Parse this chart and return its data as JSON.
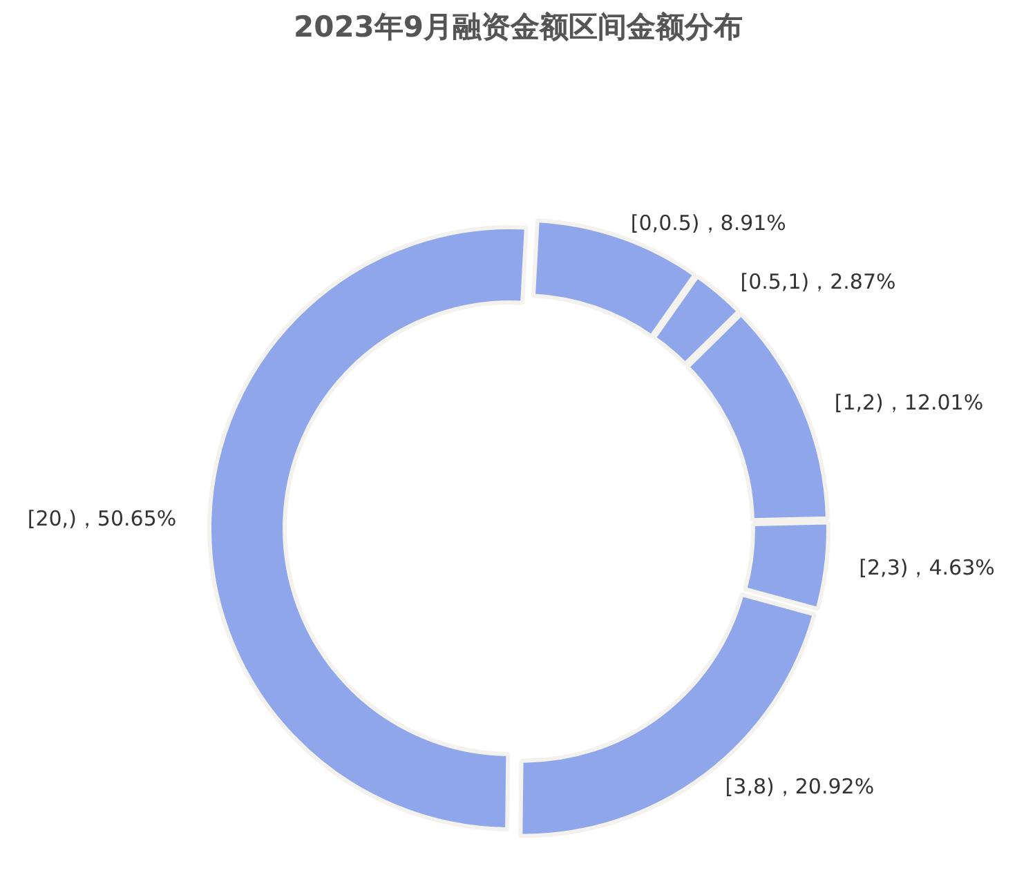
{
  "chart_data": {
    "type": "donut",
    "title": "2023年9月融资金额区间金额分布",
    "categories": [
      "[0,0.5)",
      "[0.5,1)",
      "[1,2)",
      "[2,3)",
      "[3,8)",
      "[20,)"
    ],
    "values": [
      8.91,
      2.87,
      12.01,
      4.63,
      20.92,
      50.65
    ],
    "colors": [
      "#8fa6ea",
      "#8fa6ea",
      "#8fa6ea",
      "#8fa6ea",
      "#8fa6ea",
      "#8fa6ea"
    ],
    "value_labels": [
      "，8.91%",
      "，2.87%",
      "，12.01%",
      "，4.63%",
      "，20.92%",
      "，50.65%"
    ]
  }
}
